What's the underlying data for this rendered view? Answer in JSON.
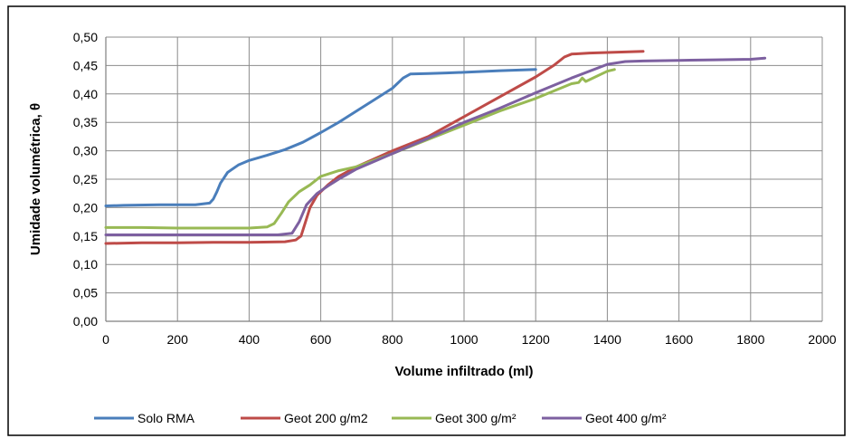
{
  "chart_data": {
    "type": "line",
    "title": "",
    "xlabel": "Volume infiltrado (ml)",
    "ylabel": "Umidade volumétrica, θ",
    "xlim": [
      0,
      2000
    ],
    "ylim": [
      0,
      0.5
    ],
    "x_ticks": [
      0,
      200,
      400,
      600,
      800,
      1000,
      1200,
      1400,
      1600,
      1800,
      2000
    ],
    "x_tick_labels": [
      "0",
      "200",
      "400",
      "600",
      "800",
      "1000",
      "1200",
      "1400",
      "1600",
      "1800",
      "2000"
    ],
    "y_ticks": [
      0,
      0.05,
      0.1,
      0.15,
      0.2,
      0.25,
      0.3,
      0.35,
      0.4,
      0.45,
      0.5
    ],
    "y_tick_labels": [
      "0,00",
      "0,05",
      "0,10",
      "0,15",
      "0,20",
      "0,25",
      "0,30",
      "0,35",
      "0,40",
      "0,45",
      "0,50"
    ],
    "grid": true,
    "legend_position": "bottom",
    "series": [
      {
        "name": "Solo RMA",
        "color": "#4a7ebb",
        "points": [
          [
            0,
            0.203
          ],
          [
            50,
            0.204
          ],
          [
            150,
            0.205
          ],
          [
            250,
            0.205
          ],
          [
            290,
            0.208
          ],
          [
            300,
            0.215
          ],
          [
            310,
            0.228
          ],
          [
            320,
            0.243
          ],
          [
            340,
            0.262
          ],
          [
            370,
            0.275
          ],
          [
            400,
            0.283
          ],
          [
            450,
            0.292
          ],
          [
            500,
            0.302
          ],
          [
            550,
            0.315
          ],
          [
            600,
            0.332
          ],
          [
            650,
            0.35
          ],
          [
            700,
            0.37
          ],
          [
            750,
            0.39
          ],
          [
            800,
            0.41
          ],
          [
            830,
            0.428
          ],
          [
            850,
            0.435
          ],
          [
            900,
            0.436
          ],
          [
            950,
            0.437
          ],
          [
            1000,
            0.438
          ],
          [
            1100,
            0.441
          ],
          [
            1200,
            0.443
          ]
        ]
      },
      {
        "name": "Geot 200 g/m2",
        "color": "#be4b48",
        "points": [
          [
            0,
            0.137
          ],
          [
            100,
            0.138
          ],
          [
            200,
            0.138
          ],
          [
            300,
            0.139
          ],
          [
            400,
            0.139
          ],
          [
            500,
            0.14
          ],
          [
            530,
            0.143
          ],
          [
            545,
            0.15
          ],
          [
            555,
            0.17
          ],
          [
            570,
            0.2
          ],
          [
            590,
            0.222
          ],
          [
            620,
            0.24
          ],
          [
            650,
            0.255
          ],
          [
            700,
            0.272
          ],
          [
            800,
            0.3
          ],
          [
            900,
            0.325
          ],
          [
            1000,
            0.36
          ],
          [
            1100,
            0.395
          ],
          [
            1200,
            0.43
          ],
          [
            1250,
            0.45
          ],
          [
            1280,
            0.465
          ],
          [
            1300,
            0.47
          ],
          [
            1350,
            0.472
          ],
          [
            1400,
            0.473
          ],
          [
            1500,
            0.475
          ]
        ]
      },
      {
        "name": "Geot 300 g/m²",
        "color": "#98b954",
        "points": [
          [
            0,
            0.165
          ],
          [
            100,
            0.165
          ],
          [
            200,
            0.164
          ],
          [
            300,
            0.164
          ],
          [
            400,
            0.164
          ],
          [
            450,
            0.166
          ],
          [
            470,
            0.172
          ],
          [
            490,
            0.19
          ],
          [
            510,
            0.21
          ],
          [
            540,
            0.228
          ],
          [
            570,
            0.24
          ],
          [
            600,
            0.255
          ],
          [
            650,
            0.265
          ],
          [
            700,
            0.272
          ],
          [
            800,
            0.295
          ],
          [
            900,
            0.32
          ],
          [
            1000,
            0.345
          ],
          [
            1100,
            0.37
          ],
          [
            1200,
            0.392
          ],
          [
            1300,
            0.418
          ],
          [
            1320,
            0.42
          ],
          [
            1330,
            0.428
          ],
          [
            1340,
            0.422
          ],
          [
            1400,
            0.44
          ],
          [
            1420,
            0.443
          ]
        ]
      },
      {
        "name": "Geot 400 g/m²",
        "color": "#7d60a0",
        "points": [
          [
            0,
            0.152
          ],
          [
            100,
            0.152
          ],
          [
            200,
            0.152
          ],
          [
            300,
            0.152
          ],
          [
            400,
            0.152
          ],
          [
            480,
            0.152
          ],
          [
            520,
            0.155
          ],
          [
            540,
            0.175
          ],
          [
            560,
            0.205
          ],
          [
            590,
            0.225
          ],
          [
            620,
            0.238
          ],
          [
            650,
            0.25
          ],
          [
            700,
            0.268
          ],
          [
            800,
            0.295
          ],
          [
            900,
            0.322
          ],
          [
            1000,
            0.35
          ],
          [
            1100,
            0.375
          ],
          [
            1200,
            0.402
          ],
          [
            1300,
            0.428
          ],
          [
            1400,
            0.452
          ],
          [
            1450,
            0.457
          ],
          [
            1500,
            0.458
          ],
          [
            1600,
            0.459
          ],
          [
            1700,
            0.46
          ],
          [
            1800,
            0.461
          ],
          [
            1840,
            0.463
          ]
        ]
      }
    ]
  }
}
